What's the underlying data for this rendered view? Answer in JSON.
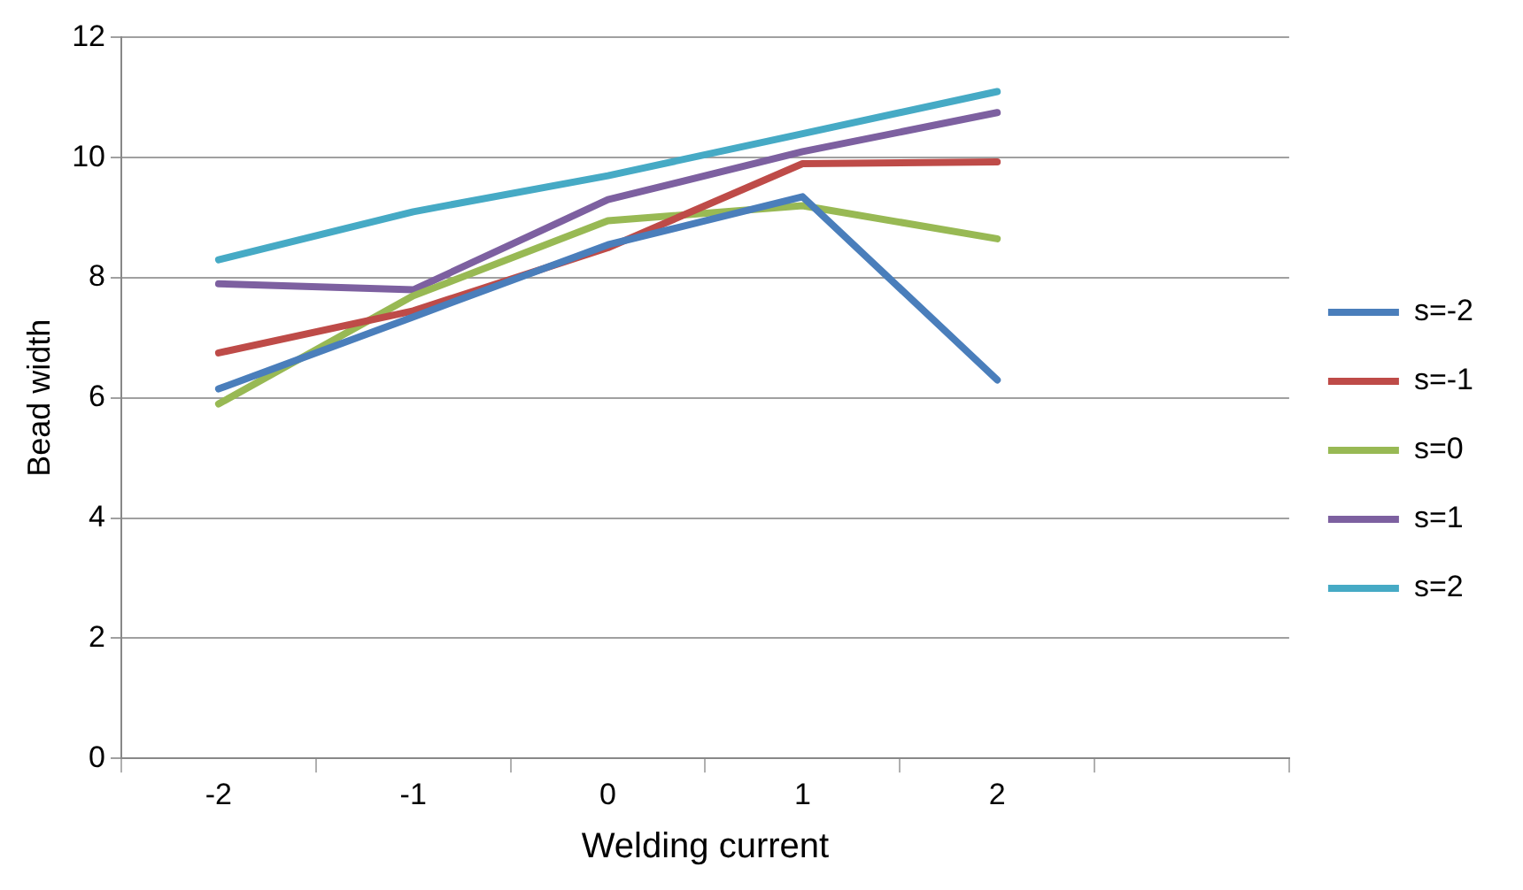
{
  "chart_data": {
    "type": "line",
    "xlabel": "Welding current",
    "ylabel": "Bead width",
    "categories": [
      "-2",
      "-1",
      "0",
      "1",
      "2",
      null
    ],
    "series": [
      {
        "name": "s=-2",
        "color": "#4a7ebb",
        "values": [
          6.15,
          7.35,
          8.55,
          9.35,
          6.3,
          null
        ]
      },
      {
        "name": "s=-1",
        "color": "#be4b48",
        "values": [
          6.75,
          7.45,
          8.5,
          9.9,
          9.93,
          null
        ]
      },
      {
        "name": "s=0",
        "color": "#98b954",
        "values": [
          5.9,
          7.7,
          8.95,
          9.2,
          8.65,
          null
        ]
      },
      {
        "name": "s=1",
        "color": "#7d60a0",
        "values": [
          7.9,
          7.8,
          9.3,
          10.1,
          10.75,
          null
        ]
      },
      {
        "name": "s=2",
        "color": "#46aac5",
        "values": [
          8.3,
          9.1,
          9.7,
          10.4,
          11.1,
          null
        ]
      }
    ],
    "ylim": [
      0,
      12
    ],
    "yticks": [
      0,
      2,
      4,
      6,
      8,
      10,
      12
    ],
    "grid": "y",
    "legend": "right",
    "marker": "none",
    "line_style": "solid"
  }
}
